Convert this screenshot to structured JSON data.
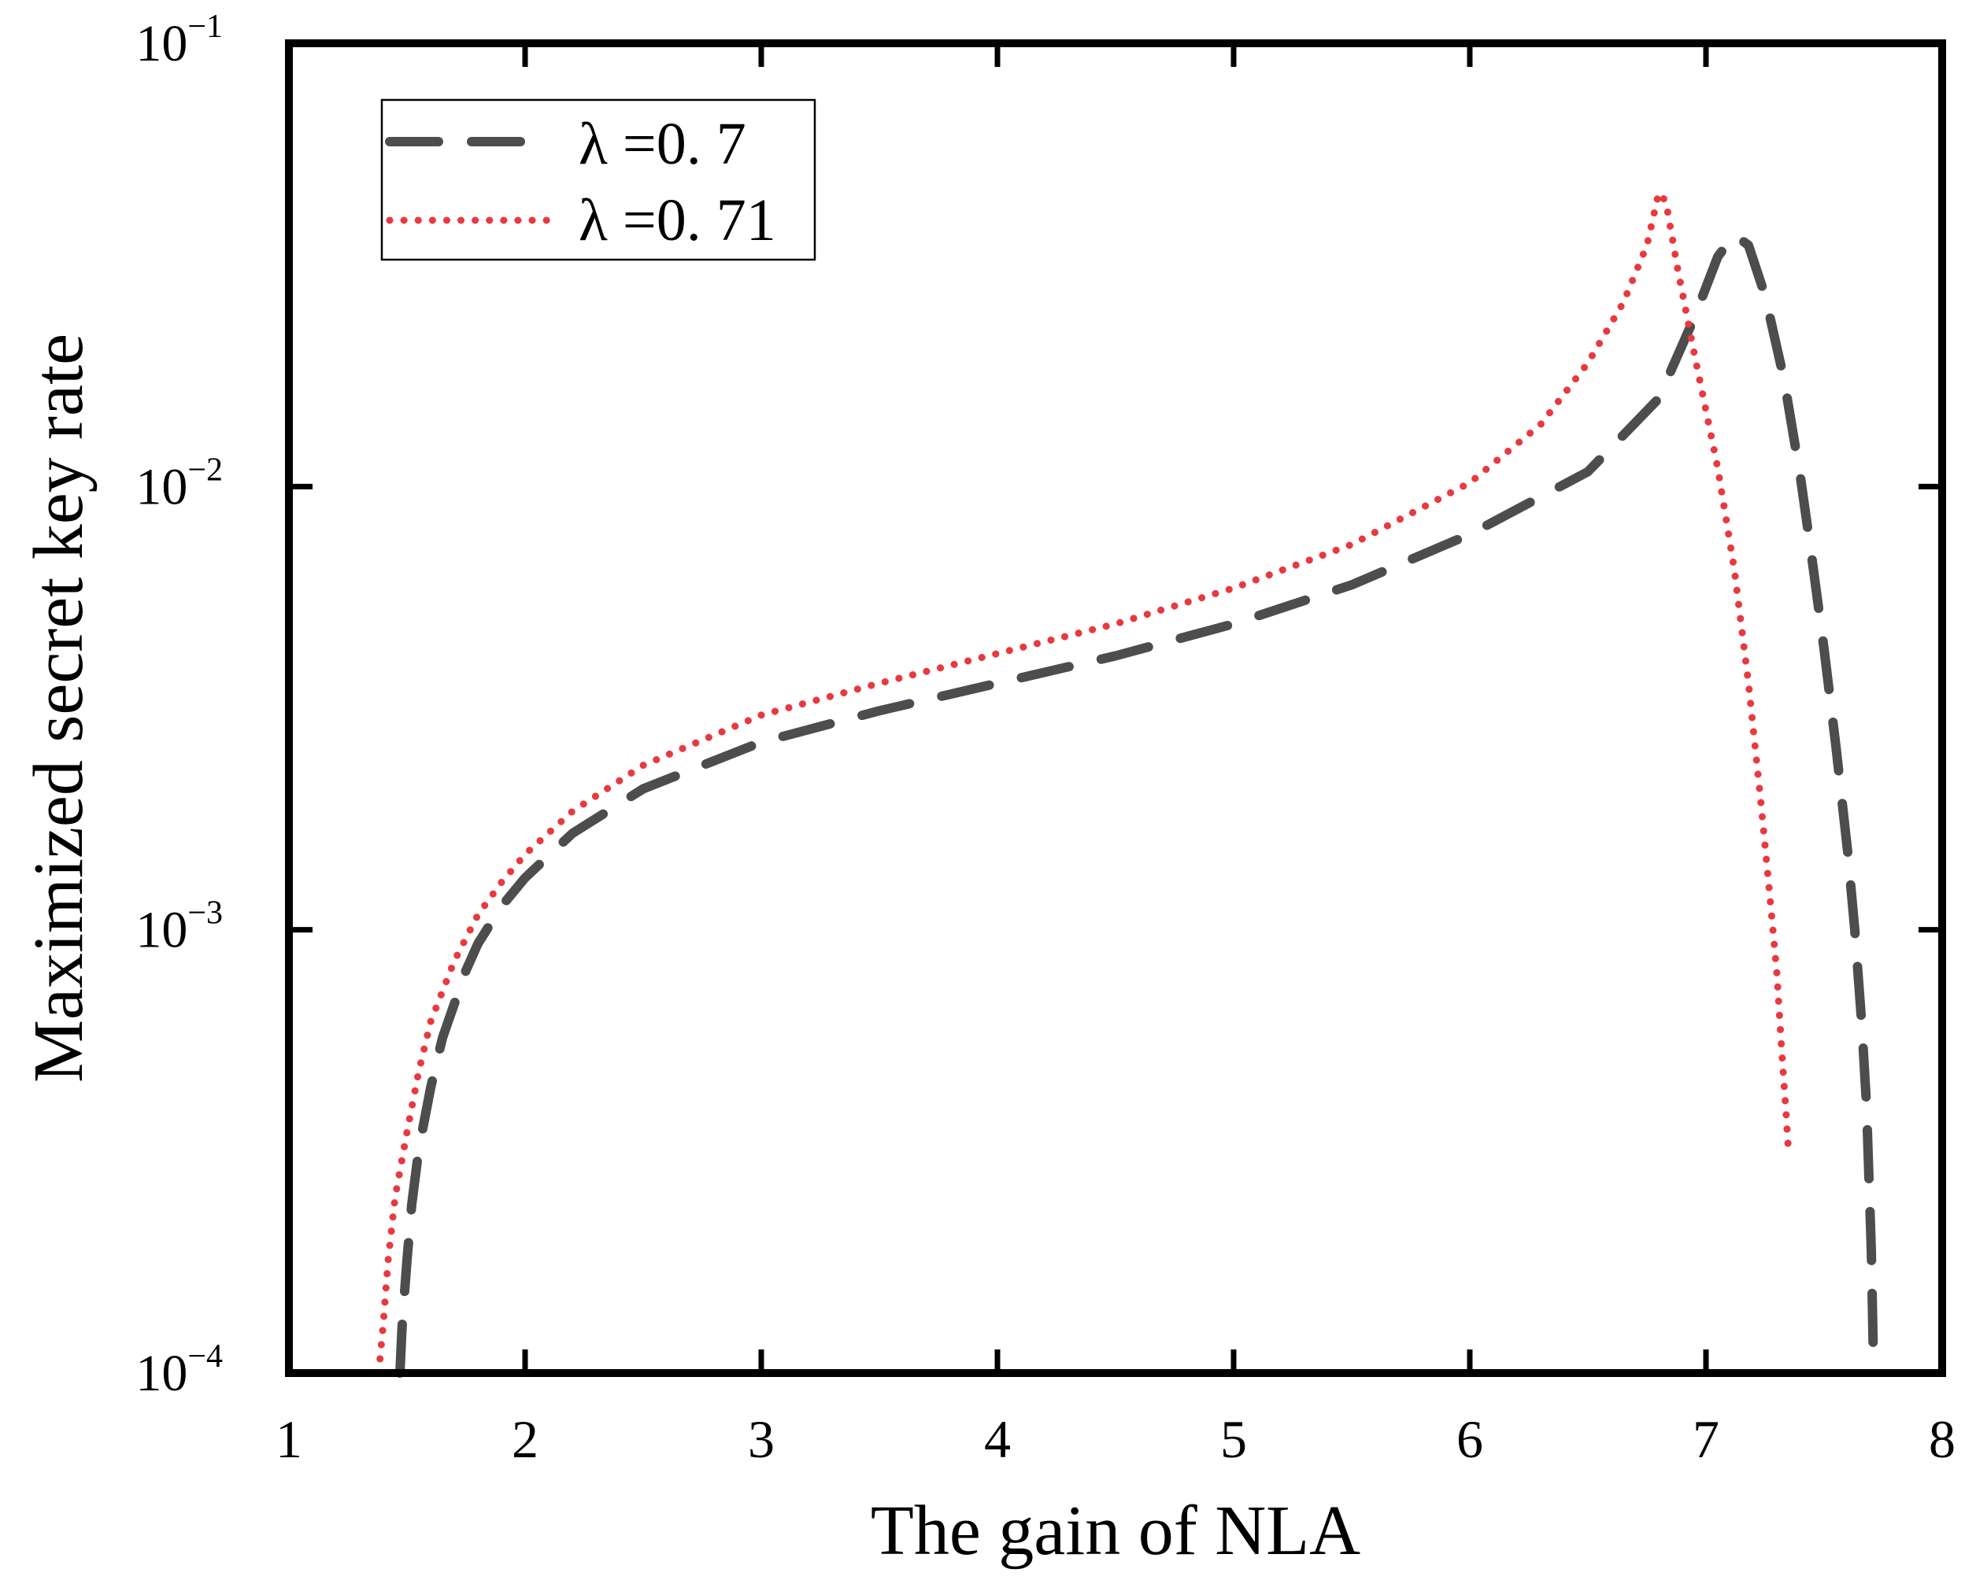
{
  "chart_data": {
    "type": "line",
    "title": "",
    "xlabel": "The gain of NLA",
    "ylabel": "Maximized secret key rate",
    "xlim": [
      1,
      8
    ],
    "ylim": [
      0.0001,
      0.1
    ],
    "yscale": "log",
    "xticks": [
      {
        "value": 1,
        "label": "1"
      },
      {
        "value": 2,
        "label": "2"
      },
      {
        "value": 3,
        "label": "3"
      },
      {
        "value": 4,
        "label": "4"
      },
      {
        "value": 5,
        "label": "5"
      },
      {
        "value": 6,
        "label": "6"
      },
      {
        "value": 7,
        "label": "7"
      },
      {
        "value": 8,
        "label": "8"
      }
    ],
    "yticks": [
      {
        "value": 0.0001,
        "base": "10",
        "exp": "−4"
      },
      {
        "value": 0.001,
        "base": "10",
        "exp": "−3"
      },
      {
        "value": 0.01,
        "base": "10",
        "exp": "−2"
      },
      {
        "value": 0.1,
        "base": "10",
        "exp": "−1"
      }
    ],
    "grid": false,
    "legend_position": "top-left",
    "series": [
      {
        "name": "λ =0. 7",
        "color": "#4d4d4d",
        "style": "dashed",
        "x": [
          1.47,
          1.48,
          1.5,
          1.52,
          1.55,
          1.6,
          1.65,
          1.7,
          1.75,
          1.8,
          1.9,
          2.0,
          2.2,
          2.5,
          3.0,
          3.5,
          4.0,
          4.5,
          5.0,
          5.5,
          6.0,
          6.5,
          6.8,
          6.95,
          7.05,
          7.12,
          7.18,
          7.25,
          7.33,
          7.4,
          7.45,
          7.5,
          7.55,
          7.6,
          7.63,
          7.66,
          7.68,
          7.7,
          7.71
        ],
        "y": [
          0.0001,
          0.00013,
          0.00018,
          0.00024,
          0.00032,
          0.00044,
          0.00057,
          0.00068,
          0.00081,
          0.00093,
          0.00113,
          0.00131,
          0.00165,
          0.00208,
          0.00265,
          0.00312,
          0.0036,
          0.00415,
          0.0049,
          0.006,
          0.0078,
          0.0108,
          0.0158,
          0.024,
          0.033,
          0.037,
          0.035,
          0.027,
          0.0175,
          0.0105,
          0.0068,
          0.0043,
          0.0026,
          0.0015,
          0.001,
          0.00061,
          0.0004,
          0.00019,
          0.0001
        ]
      },
      {
        "name": "λ =0. 71",
        "color": "#e8393f",
        "style": "dotted",
        "x": [
          1.38,
          1.4,
          1.42,
          1.45,
          1.5,
          1.55,
          1.6,
          1.7,
          1.8,
          1.9,
          2.0,
          2.2,
          2.5,
          3.0,
          3.5,
          4.0,
          4.5,
          5.0,
          5.5,
          6.0,
          6.3,
          6.5,
          6.65,
          6.75,
          6.8,
          6.83,
          6.88,
          6.95,
          7.05,
          7.12,
          7.18,
          7.23,
          7.27,
          7.3,
          7.32,
          7.34,
          7.35
        ],
        "y": [
          0.0001,
          0.00013,
          0.00018,
          0.00025,
          0.00035,
          0.00048,
          0.00062,
          0.00085,
          0.00108,
          0.00128,
          0.00148,
          0.00185,
          0.00235,
          0.00305,
          0.0036,
          0.0042,
          0.0049,
          0.0059,
          0.0074,
          0.0102,
          0.0138,
          0.019,
          0.026,
          0.035,
          0.046,
          0.044,
          0.031,
          0.02,
          0.011,
          0.0065,
          0.0036,
          0.002,
          0.0012,
          0.0008,
          0.00054,
          0.00038,
          0.00031
        ]
      }
    ]
  }
}
